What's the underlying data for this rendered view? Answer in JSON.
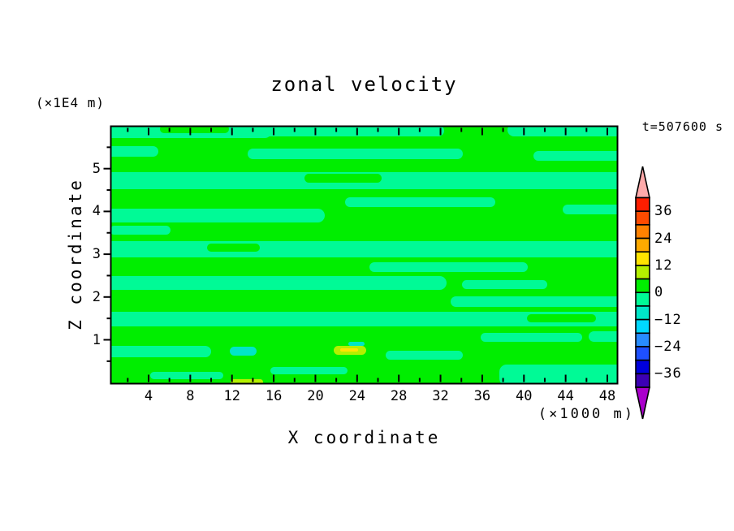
{
  "header": {
    "title": "zonal velocity",
    "y_axis_unit": "(×1E4 m)",
    "time_stamp": "t=507600 s"
  },
  "x_axis": {
    "title": "X coordinate",
    "unit": "(×1000 m)",
    "major_ticks": [
      4,
      8,
      12,
      16,
      20,
      24,
      28,
      32,
      36,
      40,
      44,
      48
    ],
    "major_tick_labels": [
      "4",
      "8",
      "12",
      "16",
      "20",
      "24",
      "28",
      "32",
      "36",
      "40",
      "44",
      "48"
    ],
    "minor_ticks": [
      2,
      6,
      10,
      14,
      18,
      22,
      26,
      30,
      34,
      38,
      42,
      46
    ]
  },
  "y_axis": {
    "title": "Z coordinate",
    "major_ticks": [
      1,
      2,
      3,
      4,
      5
    ],
    "major_tick_labels": [
      "1",
      "2",
      "3",
      "4",
      "5"
    ],
    "minor_ticks": [
      0.5,
      1.5,
      2.5,
      3.5,
      4.5,
      5.5
    ]
  },
  "colorbar": {
    "labels": [
      "36",
      "24",
      "12",
      "0",
      "−12",
      "−24",
      "−36"
    ],
    "label_values": [
      36,
      24,
      12,
      0,
      -12,
      -24,
      -36
    ],
    "segment_colors_top_to_bottom": [
      "#ff1e00",
      "#ff4b00",
      "#ff8200",
      "#ffaa00",
      "#ffe400",
      "#b4f000",
      "#00ee00",
      "#00fa96",
      "#00e6c8",
      "#00d8ff",
      "#288cff",
      "#1e50ff",
      "#0000dc",
      "#3c00b4"
    ],
    "over_arrow_color": "#ffaaaa",
    "under_arrow_color": "#aa00cc",
    "outline_color": "#000000"
  },
  "chart_data": {
    "type": "heatmap",
    "subtype": "filled-contour",
    "title": "zonal velocity",
    "xlabel": "X coordinate (×1000 m)",
    "ylabel": "Z coordinate (×1E4 m)",
    "annotation": "t=507600 s",
    "xlim": [
      0.5,
      49
    ],
    "ylim": [
      0,
      6
    ],
    "grid": false,
    "legend_position": "right-vertical-colorbar-with-arrows",
    "contour_levels": [
      -42,
      -36,
      -30,
      -24,
      -18,
      -12,
      -6,
      0,
      6,
      12,
      18,
      24,
      30,
      36,
      42
    ],
    "contour_interval": 6,
    "value_summary": "Field is almost everywhere between −6 and +6: wavy horizontal bands of the 0..6 green and −6..0 spring-green colors; tiny −12..−6 turquoise patch near x≈12, z≈0.75; tiny 6..18 chartreuse/yellow blob near x≈23, z≈0.8; thin 6..12 sliver on the bottom edge near x≈12.",
    "field": {
      "bg": "G",
      "palette": {
        "G": "#00ee00",
        "S": "#00fa96",
        "TQ": "#00e6c8",
        "CH": "#b4f000",
        "YE": "#ffe400"
      },
      "streaks": [
        [
          -12,
          -6,
          210,
          20,
          "S"
        ],
        [
          150,
          -2,
          260,
          14,
          "S"
        ],
        [
          488,
          -4,
          150,
          16,
          "S"
        ],
        [
          60,
          -2,
          85,
          10,
          "G"
        ],
        [
          -12,
          24,
          70,
          13,
          "S"
        ],
        [
          168,
          27,
          265,
          13,
          "S"
        ],
        [
          520,
          30,
          118,
          12,
          "S"
        ],
        [
          -12,
          56,
          650,
          21,
          "S"
        ],
        [
          238,
          58,
          95,
          11,
          "G"
        ],
        [
          288,
          87,
          185,
          12,
          "S"
        ],
        [
          556,
          96,
          90,
          12,
          "S"
        ],
        [
          -12,
          101,
          275,
          17,
          "S"
        ],
        [
          -2,
          122,
          75,
          11,
          "S"
        ],
        [
          -12,
          141,
          650,
          20,
          "S"
        ],
        [
          118,
          144,
          65,
          10,
          "G"
        ],
        [
          318,
          167,
          195,
          12,
          "S"
        ],
        [
          -12,
          184,
          425,
          17,
          "S"
        ],
        [
          432,
          189,
          105,
          11,
          "S"
        ],
        [
          418,
          209,
          230,
          13,
          "S"
        ],
        [
          -12,
          228,
          650,
          18,
          "S"
        ],
        [
          512,
          231,
          85,
          10,
          "G"
        ],
        [
          455,
          254,
          125,
          11,
          "S"
        ],
        [
          588,
          252,
          62,
          13,
          "S"
        ],
        [
          -12,
          270,
          135,
          14,
          "S"
        ],
        [
          338,
          276,
          95,
          11,
          "S"
        ],
        [
          196,
          296,
          95,
          9,
          "S"
        ],
        [
          478,
          293,
          175,
          26,
          "S"
        ],
        [
          48,
          302,
          90,
          9,
          "S"
        ],
        [
          146,
          271,
          33,
          11,
          "TQ"
        ],
        [
          292,
          265,
          20,
          5,
          "TQ"
        ],
        [
          274,
          270,
          40,
          11,
          "CH"
        ],
        [
          282,
          273,
          22,
          4,
          "YE"
        ],
        [
          147,
          311,
          40,
          7,
          "CH"
        ]
      ]
    }
  }
}
